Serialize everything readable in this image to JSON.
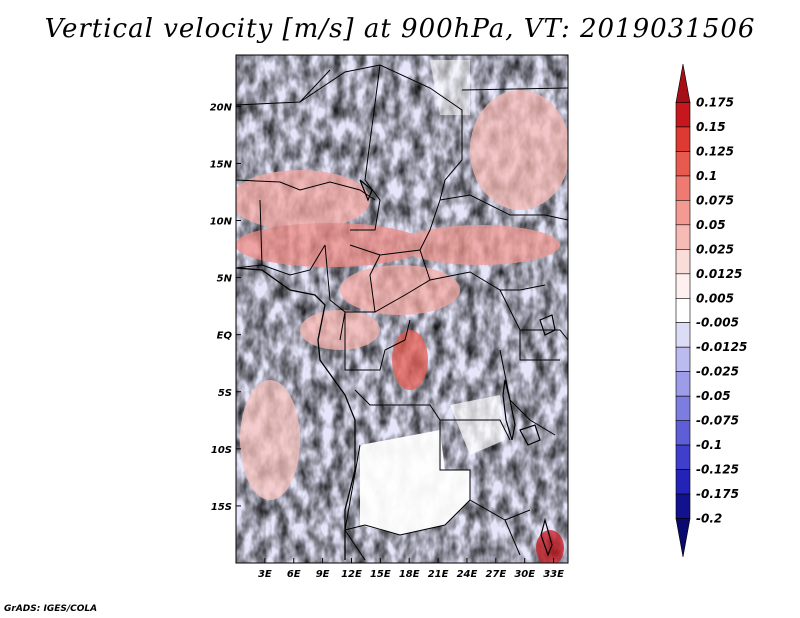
{
  "title": "Vertical velocity [m/s] at 900hPa, VT: 2019031506",
  "credit": "GrADS: IGES/COLA",
  "chart_data": {
    "type": "heatmap",
    "variable": "Vertical velocity",
    "units": "m/s",
    "level": "900hPa",
    "valid_time": "2019031506",
    "x_ticks": [
      "3E",
      "6E",
      "9E",
      "12E",
      "15E",
      "18E",
      "21E",
      "24E",
      "27E",
      "30E",
      "33E"
    ],
    "x_tick_values": [
      3,
      6,
      9,
      12,
      15,
      18,
      21,
      24,
      27,
      30,
      33
    ],
    "y_ticks": [
      "20N",
      "15N",
      "10N",
      "5N",
      "EQ",
      "5S",
      "10S",
      "15S"
    ],
    "y_tick_values": [
      20,
      15,
      10,
      5,
      0,
      -5,
      -10,
      -15
    ],
    "xlim": [
      0,
      34.5
    ],
    "ylim": [
      -20,
      24.5
    ],
    "colorbar": {
      "levels": [
        "0.175",
        "0.15",
        "0.125",
        "0.1",
        "0.075",
        "0.05",
        "0.025",
        "0.0125",
        "0.005",
        "-0.005",
        "-0.0125",
        "-0.025",
        "-0.05",
        "-0.075",
        "-0.1",
        "-0.125",
        "-0.175",
        "-0.2"
      ],
      "colors": [
        "#a50f15",
        "#c7171e",
        "#dc3a32",
        "#e85a50",
        "#ee7a72",
        "#f39a93",
        "#f7bbb5",
        "#fadcd8",
        "#fdf0ee",
        "#ffffff",
        "#dcdcf7",
        "#bbbbf0",
        "#9c9ce8",
        "#7d7de0",
        "#5e5ed6",
        "#3f3fcc",
        "#2323b8",
        "#12128f",
        "#0a0a6e"
      ]
    }
  }
}
